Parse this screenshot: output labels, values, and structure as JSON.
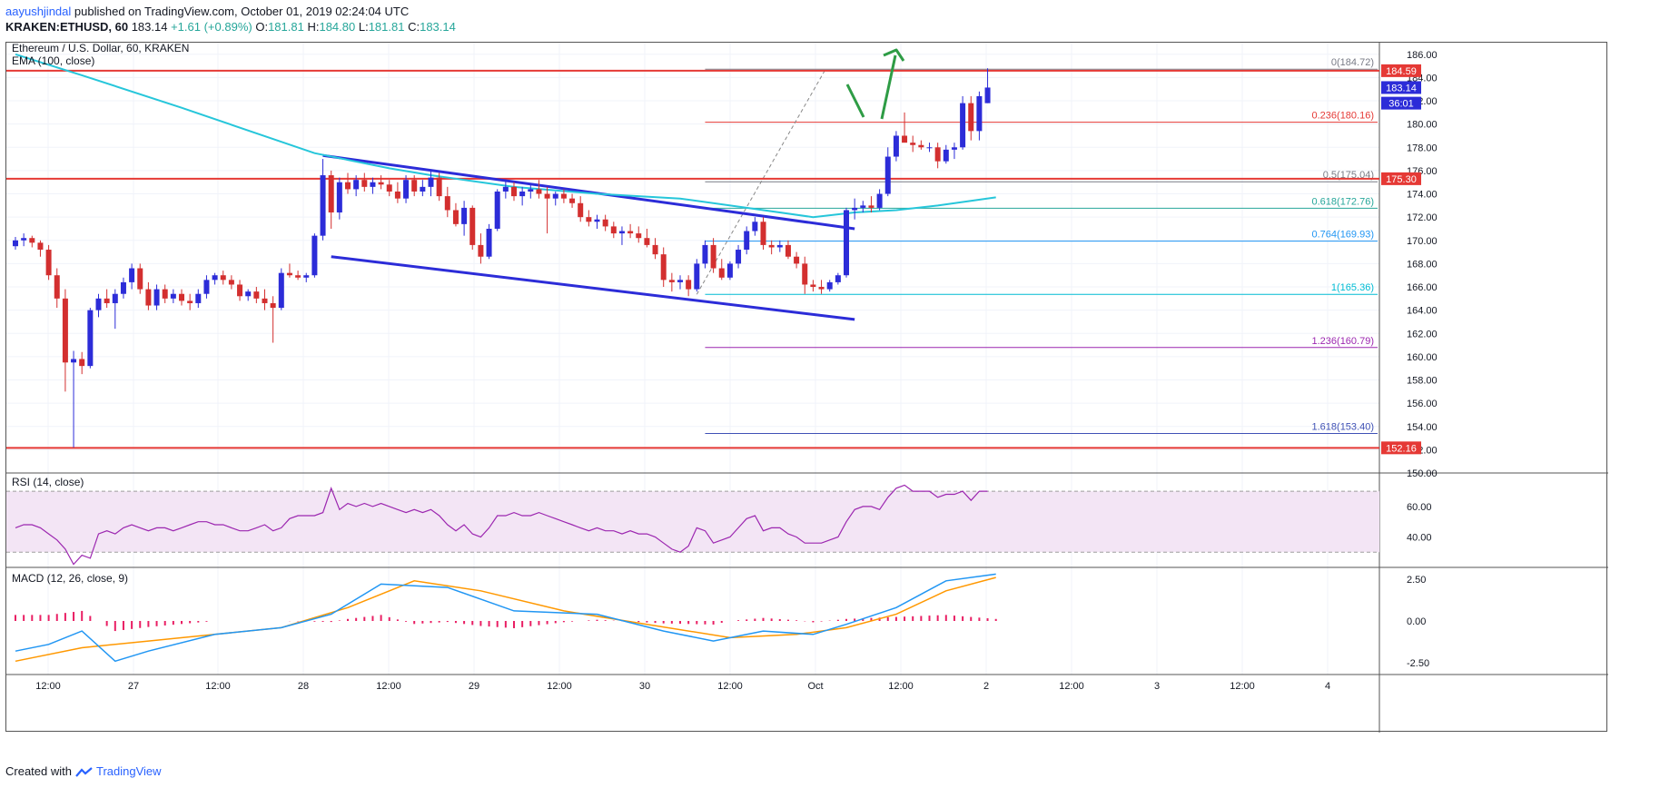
{
  "header": {
    "author": "aayushjindal",
    "published": "published on TradingView.com, October 01, 2019 02:24:04 UTC",
    "symbol": "KRAKEN:ETHUSD, 60",
    "last": "183.14",
    "change": "+1.61 (+0.89%)",
    "o_label": "O:",
    "o": "181.81",
    "h_label": "H:",
    "h": "184.80",
    "l_label": "L:",
    "l": "181.81",
    "c_label": "C:",
    "c": "183.14"
  },
  "footer": {
    "created_with": "Created with",
    "brand": "TradingView"
  },
  "chart_data": {
    "type": "candlestick",
    "title": "Ethereum / U.S. Dollar, 60, KRAKEN",
    "ema_label": "EMA (100, close)",
    "ylim": [
      150,
      187
    ],
    "y_ticks": [
      "186.00",
      "184.00",
      "182.00",
      "180.00",
      "178.00",
      "176.00",
      "174.00",
      "172.00",
      "170.00",
      "168.00",
      "166.00",
      "164.00",
      "162.00",
      "160.00",
      "158.00",
      "156.00",
      "154.00",
      "152.00",
      "150.00"
    ],
    "x_ticks": [
      "12:00",
      "27",
      "12:00",
      "28",
      "12:00",
      "29",
      "12:00",
      "30",
      "12:00",
      "Oct",
      "12:00",
      "2",
      "12:00",
      "3",
      "12:00",
      "4"
    ],
    "candles": [
      [
        169.5,
        170.3,
        169.2,
        170.0
      ],
      [
        170.0,
        170.6,
        169.5,
        170.2
      ],
      [
        170.2,
        170.4,
        169.4,
        169.8
      ],
      [
        169.8,
        170.0,
        168.6,
        169.2
      ],
      [
        169.2,
        169.6,
        166.6,
        167.0
      ],
      [
        167.0,
        167.6,
        164.2,
        165.0
      ],
      [
        165.0,
        165.8,
        157.0,
        159.5
      ],
      [
        159.5,
        160.5,
        152.2,
        159.8
      ],
      [
        159.8,
        160.4,
        158.5,
        159.2
      ],
      [
        159.2,
        164.2,
        159.0,
        164.0
      ],
      [
        164.0,
        165.4,
        163.4,
        165.0
      ],
      [
        165.0,
        165.8,
        164.2,
        164.6
      ],
      [
        164.6,
        165.8,
        162.4,
        165.4
      ],
      [
        165.4,
        166.8,
        165.0,
        166.4
      ],
      [
        166.4,
        168.0,
        165.8,
        167.6
      ],
      [
        167.6,
        168.0,
        165.4,
        165.8
      ],
      [
        165.8,
        166.4,
        164.0,
        164.4
      ],
      [
        164.4,
        166.2,
        164.0,
        165.8
      ],
      [
        165.8,
        166.2,
        164.6,
        165.0
      ],
      [
        165.0,
        165.8,
        164.6,
        165.4
      ],
      [
        165.4,
        165.8,
        164.4,
        164.8
      ],
      [
        164.8,
        165.4,
        164.0,
        164.6
      ],
      [
        164.6,
        165.8,
        164.2,
        165.4
      ],
      [
        165.4,
        167.0,
        165.0,
        166.6
      ],
      [
        166.6,
        167.2,
        166.2,
        167.0
      ],
      [
        167.0,
        167.4,
        166.2,
        166.6
      ],
      [
        166.6,
        167.0,
        165.8,
        166.2
      ],
      [
        166.2,
        166.6,
        164.8,
        165.2
      ],
      [
        165.2,
        165.8,
        164.8,
        165.6
      ],
      [
        165.6,
        166.0,
        164.6,
        165.0
      ],
      [
        165.0,
        165.8,
        164.0,
        164.6
      ],
      [
        164.6,
        165.2,
        161.2,
        164.2
      ],
      [
        164.2,
        167.6,
        164.0,
        167.2
      ],
      [
        167.2,
        168.0,
        166.8,
        167.0
      ],
      [
        167.0,
        167.4,
        166.6,
        166.8
      ],
      [
        166.8,
        167.2,
        166.4,
        167.0
      ],
      [
        167.0,
        170.6,
        166.8,
        170.4
      ],
      [
        170.4,
        177.0,
        170.0,
        175.6
      ],
      [
        175.6,
        176.0,
        171.0,
        172.4
      ],
      [
        172.4,
        175.4,
        171.8,
        175.0
      ],
      [
        175.0,
        175.8,
        174.0,
        174.4
      ],
      [
        174.4,
        175.6,
        173.8,
        175.2
      ],
      [
        175.2,
        175.8,
        174.2,
        174.6
      ],
      [
        174.6,
        175.4,
        174.0,
        175.0
      ],
      [
        175.0,
        175.6,
        174.4,
        174.8
      ],
      [
        174.8,
        175.2,
        173.8,
        174.2
      ],
      [
        174.2,
        175.0,
        173.2,
        173.6
      ],
      [
        173.6,
        175.6,
        173.2,
        175.2
      ],
      [
        175.2,
        175.6,
        173.8,
        174.2
      ],
      [
        174.2,
        175.2,
        173.8,
        174.6
      ],
      [
        174.6,
        176.0,
        173.8,
        175.4
      ],
      [
        175.4,
        175.8,
        173.4,
        173.8
      ],
      [
        173.8,
        174.6,
        172.0,
        172.6
      ],
      [
        172.6,
        173.2,
        171.2,
        171.4
      ],
      [
        171.4,
        173.4,
        170.4,
        172.8
      ],
      [
        172.8,
        173.0,
        169.2,
        169.6
      ],
      [
        169.6,
        170.6,
        168.0,
        168.6
      ],
      [
        168.6,
        171.4,
        168.4,
        171.0
      ],
      [
        171.0,
        174.4,
        170.8,
        174.2
      ],
      [
        174.2,
        175.2,
        173.6,
        174.6
      ],
      [
        174.6,
        175.0,
        173.4,
        173.8
      ],
      [
        173.8,
        174.6,
        173.0,
        174.2
      ],
      [
        174.2,
        174.8,
        173.6,
        174.4
      ],
      [
        174.4,
        175.2,
        173.6,
        174.0
      ],
      [
        174.0,
        174.6,
        170.6,
        173.6
      ],
      [
        173.6,
        174.2,
        173.0,
        174.0
      ],
      [
        174.0,
        174.4,
        173.2,
        173.6
      ],
      [
        173.6,
        174.0,
        172.8,
        173.2
      ],
      [
        173.2,
        173.8,
        171.6,
        172.0
      ],
      [
        172.0,
        172.6,
        171.2,
        171.6
      ],
      [
        171.6,
        172.2,
        171.0,
        171.8
      ],
      [
        171.8,
        172.2,
        170.8,
        171.2
      ],
      [
        171.2,
        171.6,
        170.2,
        170.6
      ],
      [
        170.6,
        171.2,
        169.6,
        170.8
      ],
      [
        170.8,
        171.4,
        170.2,
        170.6
      ],
      [
        170.6,
        171.2,
        169.8,
        170.2
      ],
      [
        170.2,
        171.0,
        169.4,
        169.6
      ],
      [
        169.6,
        170.2,
        168.4,
        168.8
      ],
      [
        168.8,
        169.4,
        166.0,
        166.6
      ],
      [
        166.6,
        167.2,
        165.6,
        166.4
      ],
      [
        166.4,
        167.0,
        165.8,
        166.6
      ],
      [
        166.6,
        167.0,
        165.2,
        165.8
      ],
      [
        165.8,
        168.4,
        165.6,
        168.0
      ],
      [
        168.0,
        170.0,
        167.6,
        169.6
      ],
      [
        169.6,
        170.2,
        167.2,
        167.6
      ],
      [
        167.6,
        168.4,
        166.6,
        166.8
      ],
      [
        166.8,
        168.2,
        166.6,
        168.0
      ],
      [
        168.0,
        169.6,
        167.6,
        169.2
      ],
      [
        169.2,
        171.2,
        168.8,
        170.8
      ],
      [
        170.8,
        172.0,
        170.4,
        171.6
      ],
      [
        171.6,
        172.0,
        169.2,
        169.6
      ],
      [
        169.6,
        170.0,
        168.8,
        169.4
      ],
      [
        169.4,
        170.0,
        169.0,
        169.6
      ],
      [
        169.6,
        170.0,
        168.4,
        168.6
      ],
      [
        168.6,
        169.0,
        167.6,
        168.0
      ],
      [
        168.0,
        168.6,
        165.4,
        166.2
      ],
      [
        166.2,
        166.6,
        165.6,
        166.0
      ],
      [
        166.0,
        166.6,
        165.4,
        165.8
      ],
      [
        165.8,
        166.6,
        165.6,
        166.4
      ],
      [
        166.4,
        167.2,
        166.2,
        167.0
      ],
      [
        167.0,
        172.8,
        166.8,
        172.6
      ],
      [
        172.6,
        173.6,
        171.8,
        172.8
      ],
      [
        172.8,
        173.4,
        172.4,
        173.0
      ],
      [
        173.0,
        173.8,
        172.4,
        172.8
      ],
      [
        172.8,
        174.4,
        172.6,
        174.0
      ],
      [
        174.0,
        178.0,
        173.8,
        177.2
      ],
      [
        177.2,
        179.4,
        176.8,
        179.0
      ],
      [
        179.0,
        181.0,
        178.6,
        178.4
      ],
      [
        178.4,
        179.0,
        177.6,
        178.2
      ],
      [
        178.2,
        178.6,
        177.8,
        178.0
      ],
      [
        178.0,
        178.4,
        177.6,
        178.0
      ],
      [
        178.0,
        178.4,
        176.2,
        176.8
      ],
      [
        176.8,
        178.2,
        176.6,
        177.8
      ],
      [
        177.8,
        178.4,
        177.0,
        178.0
      ],
      [
        178.0,
        182.4,
        177.8,
        181.8
      ],
      [
        181.8,
        182.4,
        178.6,
        179.4
      ],
      [
        179.4,
        182.8,
        178.6,
        182.4
      ],
      [
        181.8,
        184.8,
        181.8,
        183.14
      ]
    ],
    "ema_100": [
      [
        0,
        186.0
      ],
      [
        8,
        184.2
      ],
      [
        20,
        181.4
      ],
      [
        36,
        177.5
      ],
      [
        45,
        176.2
      ],
      [
        50,
        175.6
      ],
      [
        60,
        174.6
      ],
      [
        70,
        174.0
      ],
      [
        80,
        173.6
      ],
      [
        88,
        172.8
      ],
      [
        96,
        172.0
      ],
      [
        101,
        172.4
      ],
      [
        106,
        172.6
      ],
      [
        111,
        173.0
      ],
      [
        118,
        173.7
      ]
    ],
    "horizontal_levels": [
      {
        "label": "184.59",
        "value": 184.59
      },
      {
        "label": "175.30",
        "value": 175.3
      },
      {
        "label": "152.16",
        "value": 152.16
      }
    ],
    "fibonacci": [
      {
        "ratio": "0",
        "value": 184.72,
        "label": "0(184.72)"
      },
      {
        "ratio": "0.236",
        "value": 180.16,
        "label": "0.236(180.16)"
      },
      {
        "ratio": "0.5",
        "value": 175.04,
        "label": "0.5(175.04)"
      },
      {
        "ratio": "0.618",
        "value": 172.76,
        "label": "0.618(172.76)"
      },
      {
        "ratio": "0.764",
        "value": 169.93,
        "label": "0.764(169.93)"
      },
      {
        "ratio": "1",
        "value": 165.36,
        "label": "1(165.36)"
      },
      {
        "ratio": "1.236",
        "value": 160.79,
        "label": "1.236(160.79)"
      },
      {
        "ratio": "1.618",
        "value": 153.4,
        "label": "1.618(153.40)"
      }
    ],
    "channel": {
      "upper": [
        [
          37,
          177.3
        ],
        [
          101,
          171.0
        ]
      ],
      "lower": [
        [
          38,
          168.6
        ],
        [
          101,
          163.2
        ]
      ]
    },
    "price_tags": [
      {
        "label": "184.59",
        "value": 184.59,
        "color": "#e53935"
      },
      {
        "label": "183.14",
        "value": 183.14,
        "color": "#2c2cd8"
      },
      {
        "label": "36:01",
        "value": 181.8,
        "color": "#2c2cd8"
      },
      {
        "label": "175.30",
        "value": 175.3,
        "color": "#e53935"
      },
      {
        "label": "152.16",
        "value": 152.16,
        "color": "#e53935"
      }
    ],
    "rsi": {
      "label": "RSI (14, close)",
      "ylim": [
        20,
        82
      ],
      "ticks": [
        "60.00",
        "40.00"
      ],
      "band": [
        30,
        70
      ],
      "values": [
        46,
        48,
        48,
        46,
        42,
        38,
        32,
        22,
        28,
        26,
        42,
        44,
        42,
        46,
        48,
        46,
        44,
        46,
        46,
        44,
        46,
        48,
        50,
        50,
        48,
        48,
        46,
        44,
        44,
        46,
        48,
        44,
        46,
        52,
        54,
        54,
        54,
        56,
        72,
        58,
        62,
        60,
        62,
        60,
        62,
        60,
        58,
        56,
        58,
        56,
        58,
        54,
        48,
        44,
        48,
        42,
        40,
        46,
        54,
        54,
        56,
        54,
        54,
        56,
        54,
        52,
        50,
        48,
        46,
        44,
        46,
        44,
        44,
        42,
        44,
        42,
        42,
        40,
        36,
        32,
        30,
        34,
        46,
        44,
        36,
        38,
        40,
        46,
        52,
        54,
        44,
        46,
        46,
        42,
        40,
        36,
        36,
        36,
        38,
        40,
        50,
        58,
        60,
        60,
        58,
        66,
        72,
        74,
        70,
        70,
        70,
        66,
        68,
        68,
        70,
        64,
        70,
        70
      ],
      "colors": {
        "line": "#9c27b0",
        "band": "#f3e5f5",
        "band_line": "#9e9e9e"
      }
    },
    "macd": {
      "label": "MACD (12, 26, close, 9)",
      "ylim": [
        -3.2,
        3.2
      ],
      "ticks": [
        "2.50",
        "0.00",
        "-2.50"
      ],
      "macd_line": [
        [
          0,
          -1.8
        ],
        [
          4,
          -1.4
        ],
        [
          8,
          -0.6
        ],
        [
          12,
          -2.4
        ],
        [
          16,
          -1.8
        ],
        [
          24,
          -0.8
        ],
        [
          32,
          -0.4
        ],
        [
          38,
          0.4
        ],
        [
          44,
          2.2
        ],
        [
          52,
          2.0
        ],
        [
          60,
          0.6
        ],
        [
          70,
          0.4
        ],
        [
          78,
          -0.6
        ],
        [
          84,
          -1.2
        ],
        [
          90,
          -0.6
        ],
        [
          96,
          -0.8
        ],
        [
          100,
          -0.2
        ],
        [
          106,
          0.8
        ],
        [
          112,
          2.4
        ],
        [
          118,
          2.8
        ]
      ],
      "signal_line": [
        [
          0,
          -2.4
        ],
        [
          8,
          -1.6
        ],
        [
          16,
          -1.2
        ],
        [
          24,
          -0.8
        ],
        [
          32,
          -0.4
        ],
        [
          40,
          0.8
        ],
        [
          48,
          2.4
        ],
        [
          56,
          1.8
        ],
        [
          66,
          0.6
        ],
        [
          76,
          -0.2
        ],
        [
          86,
          -1.0
        ],
        [
          94,
          -0.8
        ],
        [
          100,
          -0.4
        ],
        [
          106,
          0.4
        ],
        [
          112,
          1.8
        ],
        [
          118,
          2.6
        ]
      ],
      "colors": {
        "macd": "#2196f3",
        "signal": "#ff9800",
        "hist": "#e91e63"
      }
    },
    "colors": {
      "up": "#2c2cd8",
      "down": "#d32f2f",
      "ema": "#26c6da",
      "level": "#e53935",
      "channel": "#2c2cd8",
      "arrow": "#2e9c45",
      "grid": "#f0f3fa",
      "fib_line": "#9e9e9e"
    }
  }
}
